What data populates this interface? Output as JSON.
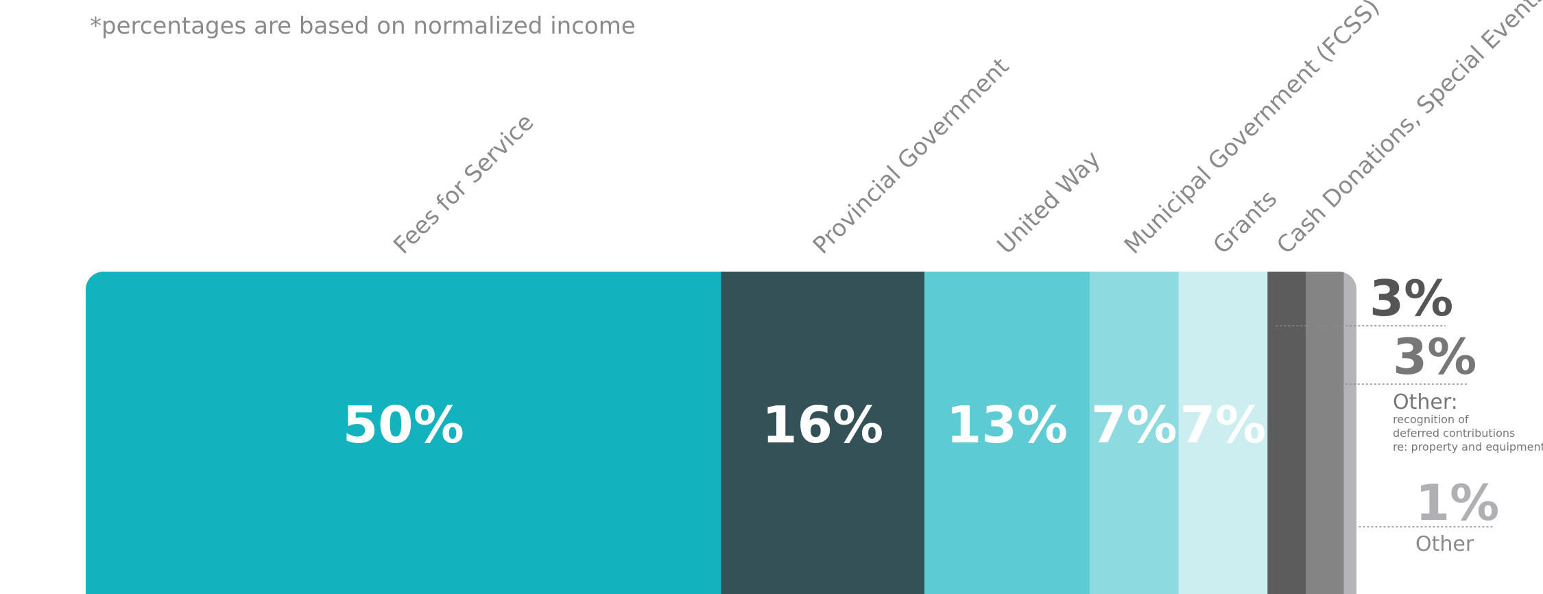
{
  "note": "*percentages are based on normalized income",
  "chart_data": {
    "type": "bar",
    "orientation": "stacked-horizontal",
    "categories": [
      "Fees for Service",
      "Provincial Government",
      "United Way",
      "Municipal Government (FCSS)",
      "Grants",
      "Cash Donations, Special Events",
      "Other: recognition of deferred contributions re: property and equipment",
      "Other"
    ],
    "values": [
      50,
      16,
      13,
      7,
      7,
      3,
      3,
      1
    ],
    "value_labels": [
      "50%",
      "16%",
      "13%",
      "7%",
      "7%",
      "3%",
      "3%",
      "1%"
    ],
    "colors": [
      "#12b3be",
      "#355158",
      "#5ccbd4",
      "#8ddbe0",
      "#cdeef1",
      "#5c5c5c",
      "#848484",
      "#b5b5b9"
    ],
    "top_labels": [
      "Fees for Service",
      "Provincial Government",
      "United Way",
      "Municipal Government (FCSS)",
      "Grants",
      "Cash Donations, Special Events"
    ],
    "side_labels": [
      {
        "value": "3%",
        "text": "",
        "detail": [],
        "color": "#555555"
      },
      {
        "value": "3%",
        "text": "Other:",
        "detail": [
          "recognition of",
          "deferred contributions",
          "re: property and equipment"
        ],
        "color": "#777777"
      },
      {
        "value": "1%",
        "text": "Other",
        "detail": [],
        "color": "#b0b0b4"
      }
    ]
  }
}
